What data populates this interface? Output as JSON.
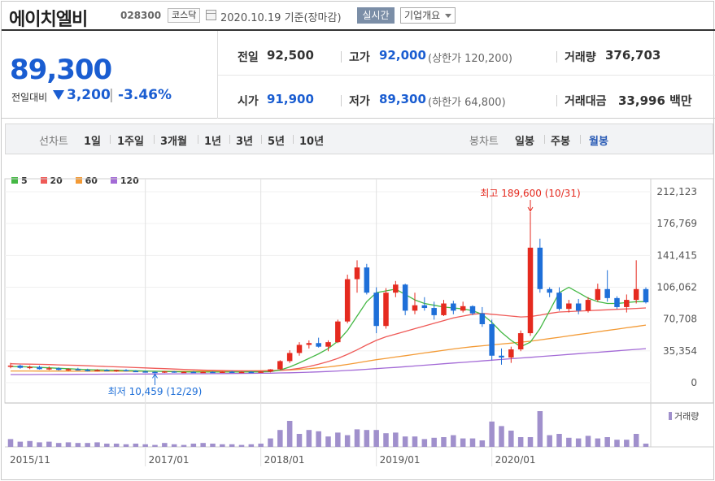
{
  "header": {
    "company": "에이치엘비",
    "code": "028300",
    "market": "코스닥",
    "date": "2020.10.19",
    "date_suffix": "기준(장마감)",
    "realtime_button": "실시간",
    "overview_button": "기업개요"
  },
  "price": {
    "current": "89,300",
    "change_label": "전일대비",
    "change": "3,200",
    "change_pct": "-3.46%",
    "direction": "down"
  },
  "stats": {
    "prev_close_label": "전일",
    "prev_close": "92,500",
    "high_label": "고가",
    "high": "92,000",
    "upper_limit": "(상한가 120,200)",
    "volume_label": "거래량",
    "volume": "376,703",
    "open_label": "시가",
    "open": "91,900",
    "low_label": "저가",
    "low": "89,300",
    "lower_limit": "(하한가 64,800)",
    "amount_label": "거래대금",
    "amount": "33,996",
    "amount_unit": "백만"
  },
  "period_bar": {
    "line_chart_label": "선차트",
    "line_options": [
      "1일",
      "1주일",
      "3개월",
      "1년",
      "3년",
      "5년",
      "10년"
    ],
    "candle_chart_label": "봉차트",
    "candle_options": [
      "일봉",
      "주봉",
      "월봉"
    ],
    "selected": "월봉"
  },
  "colors": {
    "up": "#e52a1f",
    "down": "#1e6fd8",
    "ma5": "#45b845",
    "ma20": "#ef5a57",
    "ma60": "#f39a35",
    "ma120": "#a36ad6",
    "volume": "#a090cc"
  },
  "chart_data": {
    "type": "candlestick",
    "legend": [
      "5",
      "20",
      "60",
      "120"
    ],
    "y_ticks": [
      "212,123",
      "176,769",
      "141,415",
      "106,062",
      "70,708",
      "35,354",
      "0"
    ],
    "y_tick_values": [
      212123,
      176769,
      141415,
      106062,
      70708,
      35354,
      0
    ],
    "ylim": [
      0,
      212123
    ],
    "x_ticks": [
      "2015/11",
      "2017/01",
      "2018/01",
      "2019/01",
      "2020/01"
    ],
    "volume_label": "거래량",
    "annotations": {
      "high": "최고 189,600 (10/31)",
      "high_value": 189600,
      "low": "최저 10,459 (12/29)",
      "low_value": 10459
    },
    "candles": [
      {
        "o": 18000,
        "h": 22000,
        "l": 16000,
        "c": 19000
      },
      {
        "o": 19000,
        "h": 20000,
        "l": 15500,
        "c": 16500
      },
      {
        "o": 16500,
        "h": 19000,
        "l": 15000,
        "c": 17500
      },
      {
        "o": 17500,
        "h": 19000,
        "l": 14500,
        "c": 15000
      },
      {
        "o": 15000,
        "h": 18000,
        "l": 14000,
        "c": 16000
      },
      {
        "o": 16000,
        "h": 17000,
        "l": 13500,
        "c": 14200
      },
      {
        "o": 14200,
        "h": 16000,
        "l": 13000,
        "c": 15000
      },
      {
        "o": 15000,
        "h": 16500,
        "l": 13500,
        "c": 14000
      },
      {
        "o": 14000,
        "h": 15500,
        "l": 12500,
        "c": 13000
      },
      {
        "o": 13000,
        "h": 15000,
        "l": 12500,
        "c": 14000
      },
      {
        "o": 14000,
        "h": 15000,
        "l": 13000,
        "c": 13500
      },
      {
        "o": 13500,
        "h": 14500,
        "l": 12000,
        "c": 14000
      },
      {
        "o": 14000,
        "h": 15000,
        "l": 12500,
        "c": 13000
      },
      {
        "o": 13000,
        "h": 14000,
        "l": 11800,
        "c": 12500
      },
      {
        "o": 12500,
        "h": 13500,
        "l": 11500,
        "c": 12000
      },
      {
        "o": 12000,
        "h": 13000,
        "l": 10459,
        "c": 11200
      },
      {
        "o": 11200,
        "h": 13000,
        "l": 10800,
        "c": 12500
      },
      {
        "o": 12500,
        "h": 13000,
        "l": 11000,
        "c": 11500
      },
      {
        "o": 11500,
        "h": 12500,
        "l": 10800,
        "c": 12000
      },
      {
        "o": 12000,
        "h": 13000,
        "l": 11000,
        "c": 11400
      },
      {
        "o": 11400,
        "h": 12500,
        "l": 10900,
        "c": 12000
      },
      {
        "o": 12000,
        "h": 12600,
        "l": 11000,
        "c": 11500
      },
      {
        "o": 11500,
        "h": 12500,
        "l": 11000,
        "c": 12200
      },
      {
        "o": 12200,
        "h": 13000,
        "l": 11200,
        "c": 11600
      },
      {
        "o": 11600,
        "h": 12500,
        "l": 11000,
        "c": 12000
      },
      {
        "o": 12000,
        "h": 12800,
        "l": 11300,
        "c": 11700
      },
      {
        "o": 11700,
        "h": 12800,
        "l": 11000,
        "c": 12300
      },
      {
        "o": 12300,
        "h": 15000,
        "l": 11500,
        "c": 14800
      },
      {
        "o": 14800,
        "h": 25000,
        "l": 14000,
        "c": 24000
      },
      {
        "o": 24000,
        "h": 36000,
        "l": 22000,
        "c": 33000
      },
      {
        "o": 33000,
        "h": 45000,
        "l": 30000,
        "c": 42000
      },
      {
        "o": 42000,
        "h": 47000,
        "l": 38000,
        "c": 44000
      },
      {
        "o": 44000,
        "h": 50000,
        "l": 39000,
        "c": 40000
      },
      {
        "o": 40000,
        "h": 47000,
        "l": 35000,
        "c": 45000
      },
      {
        "o": 45000,
        "h": 70000,
        "l": 44000,
        "c": 68000
      },
      {
        "o": 68000,
        "h": 120000,
        "l": 66000,
        "c": 115000
      },
      {
        "o": 115000,
        "h": 136000,
        "l": 100000,
        "c": 128000
      },
      {
        "o": 128000,
        "h": 132000,
        "l": 98000,
        "c": 100000
      },
      {
        "o": 100000,
        "h": 106000,
        "l": 55000,
        "c": 63000
      },
      {
        "o": 63000,
        "h": 105000,
        "l": 60000,
        "c": 100000
      },
      {
        "o": 100000,
        "h": 113000,
        "l": 95000,
        "c": 109000
      },
      {
        "o": 109000,
        "h": 110000,
        "l": 75000,
        "c": 80000
      },
      {
        "o": 80000,
        "h": 100000,
        "l": 76000,
        "c": 86000
      },
      {
        "o": 86000,
        "h": 95000,
        "l": 80000,
        "c": 83000
      },
      {
        "o": 83000,
        "h": 90000,
        "l": 70000,
        "c": 75000
      },
      {
        "o": 75000,
        "h": 92000,
        "l": 74000,
        "c": 88000
      },
      {
        "o": 88000,
        "h": 91000,
        "l": 76000,
        "c": 80000
      },
      {
        "o": 80000,
        "h": 90000,
        "l": 78000,
        "c": 85000
      },
      {
        "o": 85000,
        "h": 86000,
        "l": 75000,
        "c": 77000
      },
      {
        "o": 77000,
        "h": 84000,
        "l": 62000,
        "c": 65000
      },
      {
        "o": 65000,
        "h": 70000,
        "l": 25000,
        "c": 30000
      },
      {
        "o": 30000,
        "h": 38000,
        "l": 20000,
        "c": 28000
      },
      {
        "o": 28000,
        "h": 40000,
        "l": 22000,
        "c": 37000
      },
      {
        "o": 37000,
        "h": 58000,
        "l": 35000,
        "c": 55000
      },
      {
        "o": 55000,
        "h": 189600,
        "l": 52000,
        "c": 150000
      },
      {
        "o": 150000,
        "h": 160000,
        "l": 100000,
        "c": 104000
      },
      {
        "o": 104000,
        "h": 106000,
        "l": 95000,
        "c": 100000
      },
      {
        "o": 100000,
        "h": 106000,
        "l": 80000,
        "c": 82000
      },
      {
        "o": 82000,
        "h": 92000,
        "l": 78000,
        "c": 88000
      },
      {
        "o": 88000,
        "h": 93000,
        "l": 76000,
        "c": 80000
      },
      {
        "o": 80000,
        "h": 95000,
        "l": 78000,
        "c": 92000
      },
      {
        "o": 92000,
        "h": 110000,
        "l": 90000,
        "c": 104000
      },
      {
        "o": 104000,
        "h": 125000,
        "l": 90000,
        "c": 94000
      },
      {
        "o": 94000,
        "h": 96000,
        "l": 82000,
        "c": 84000
      },
      {
        "o": 84000,
        "h": 98000,
        "l": 78000,
        "c": 92000
      },
      {
        "o": 92000,
        "h": 136000,
        "l": 88000,
        "c": 104000
      },
      {
        "o": 104000,
        "h": 106000,
        "l": 88000,
        "c": 89300
      }
    ],
    "ma5": [
      18000,
      17800,
      17500,
      17000,
      16500,
      16000,
      15500,
      15000,
      14500,
      14200,
      14000,
      13800,
      13500,
      13300,
      13000,
      12700,
      12500,
      12200,
      12000,
      11900,
      11800,
      11800,
      11800,
      11900,
      11900,
      12000,
      12000,
      12300,
      14000,
      17500,
      22000,
      27000,
      32000,
      38000,
      46000,
      58000,
      74000,
      90000,
      100000,
      102000,
      104000,
      98000,
      92000,
      88000,
      86000,
      84000,
      83000,
      82000,
      80000,
      76000,
      67000,
      56000,
      47000,
      40000,
      45000,
      60000,
      80000,
      100000,
      106000,
      100000,
      94000,
      90000,
      88000,
      88000,
      89000,
      90000,
      90000
    ],
    "ma20": [
      21000,
      20800,
      20600,
      20400,
      20100,
      19800,
      19500,
      19200,
      18800,
      18400,
      18000,
      17600,
      17200,
      16800,
      16400,
      16000,
      15600,
      15200,
      14800,
      14400,
      14000,
      13700,
      13500,
      13300,
      13200,
      13100,
      13100,
      13200,
      13600,
      14500,
      16000,
      18000,
      20500,
      23500,
      27000,
      31500,
      36500,
      42000,
      47000,
      51000,
      54000,
      57000,
      60000,
      63000,
      66000,
      69000,
      72000,
      74000,
      76000,
      77000,
      76000,
      75000,
      74000,
      73000,
      73500,
      75000,
      77000,
      78500,
      79000,
      79500,
      80000,
      80500,
      81000,
      81500,
      82000,
      82500,
      83000
    ],
    "ma60": [
      13000,
      13000,
      13000,
      12900,
      12900,
      12900,
      12800,
      12800,
      12800,
      12700,
      12700,
      12700,
      12700,
      12700,
      12700,
      12700,
      12700,
      12700,
      12700,
      12700,
      12800,
      12800,
      12900,
      13000,
      13100,
      13200,
      13300,
      13500,
      13800,
      14200,
      14800,
      15500,
      16500,
      17500,
      18800,
      20300,
      22000,
      23800,
      25500,
      27000,
      28500,
      30000,
      31500,
      33000,
      34500,
      36000,
      37500,
      38800,
      40000,
      41000,
      42000,
      43000,
      44000,
      45000,
      46000,
      47500,
      49000,
      50500,
      52000,
      53500,
      55000,
      56500,
      58000,
      59500,
      61000,
      62500,
      64000
    ],
    "ma120": [
      9000,
      9000,
      9050,
      9100,
      9150,
      9200,
      9250,
      9300,
      9350,
      9400,
      9450,
      9500,
      9550,
      9600,
      9650,
      9700,
      9750,
      9800,
      9850,
      9900,
      9950,
      10000,
      10100,
      10200,
      10300,
      10400,
      10500,
      10600,
      10800,
      11000,
      11300,
      11600,
      12000,
      12500,
      13000,
      13600,
      14200,
      14900,
      15600,
      16300,
      17000,
      17800,
      18600,
      19400,
      20200,
      21000,
      21800,
      22600,
      23400,
      24200,
      25000,
      25800,
      26600,
      27400,
      28200,
      29000,
      29800,
      30600,
      31400,
      32200,
      33000,
      33800,
      34600,
      35400,
      36200,
      37000,
      37800
    ],
    "volume": [
      12,
      8,
      9,
      7,
      8,
      6,
      7,
      6,
      6,
      7,
      5,
      5,
      4,
      5,
      4,
      3,
      6,
      4,
      3,
      5,
      6,
      5,
      4,
      4,
      3,
      4,
      5,
      13,
      26,
      40,
      20,
      26,
      24,
      16,
      22,
      18,
      27,
      26,
      26,
      21,
      22,
      16,
      16,
      12,
      14,
      15,
      18,
      13,
      13,
      10,
      39,
      32,
      25,
      15,
      15,
      55,
      18,
      20,
      14,
      13,
      17,
      13,
      15,
      11,
      11,
      20,
      5
    ]
  }
}
